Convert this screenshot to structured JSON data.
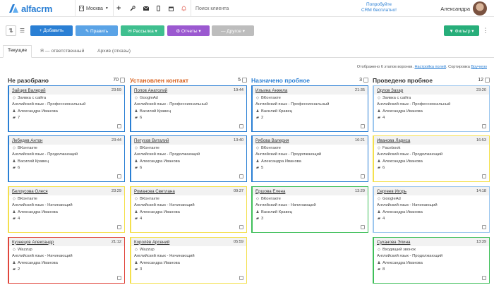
{
  "app": {
    "logo_text": "alfacrm"
  },
  "topbar": {
    "city": "Москва",
    "search_placeholder": "Поиск клиента",
    "promo_line1": "Попробуйте",
    "promo_line2": "CRM бесплатно!",
    "user_name": "Александра"
  },
  "toolbar": {
    "add": "+ Добавить",
    "edit": "✎ Править",
    "mail": "✉ Рассылка ▾",
    "reports": "⚙ Отчеты ▾",
    "other": "— Другое ▾",
    "filter": "▼ Фильтр ▾"
  },
  "tabs": [
    "Текущие",
    "Я — ответственный",
    "Архив (отказы)"
  ],
  "info": {
    "shown": "Отображено 6 этапов воронки.",
    "settings_link": "Настройка полей",
    "sort_label": "Сортировка",
    "sort_link": "Вручную"
  },
  "colors": {
    "accent": "#2a7fd4",
    "add_btn": "#2a7fd4",
    "edit_btn": "#5aa3e6",
    "mail_btn": "#3fbf8f",
    "reports_btn": "#9b59d0",
    "other_btn": "#bdbdbd",
    "filter_btn": "#27ae7a"
  },
  "columns": [
    {
      "title": "Не разобрано",
      "count": "70",
      "title_color": "#333",
      "cards": [
        {
          "name": "Зайцев Валерий",
          "time": "23:59",
          "source": "Заявка с сайта",
          "course": "Английский язык - Профессиональный",
          "manager": "Александра Иванова",
          "notes": "7",
          "border": "#2a7fd4"
        },
        {
          "name": "Лебедев Антон",
          "time": "23:44",
          "source": "ВКонтакте",
          "course": "Английский язык - Продолжающий",
          "manager": "Василий Кравец",
          "notes": "6",
          "border": "#2a7fd4"
        },
        {
          "name": "Белоусова Олеся",
          "time": "23:29",
          "source": "ВКонтакте",
          "course": "Английский язык - Начинающий",
          "manager": "Александра Иванова",
          "notes": "4",
          "border": "#f4e04d"
        },
        {
          "name": "Кузнецов Александр",
          "time": "21:12",
          "source": "Wazzup",
          "course": "Английский язык - Начинающий",
          "manager": "Александра Иванова",
          "notes": "2",
          "border": "#e0463c"
        }
      ]
    },
    {
      "title": "Установлен контакт",
      "count": "5",
      "title_color": "#d9621f",
      "cards": [
        {
          "name": "Попов Анатолий",
          "time": "19:44",
          "source": "GoogleAd",
          "course": "Английский язык - Профессиональный",
          "manager": "Василий Кравец",
          "notes": "6",
          "border": "#2a7fd4"
        },
        {
          "name": "Петухов Виталий",
          "time": "13:40",
          "source": "ВКонтакте",
          "course": "Английский язык - Продолжающий",
          "manager": "Александра Иванова",
          "notes": "6",
          "border": "#2a7fd4"
        },
        {
          "name": "Романова Светлана",
          "time": "09:37",
          "source": "ВКонтакте",
          "course": "Английский язык - Начинающий",
          "manager": "Александра Иванова",
          "notes": "4",
          "border": "#f4e04d"
        },
        {
          "name": "Королёв Арсений",
          "time": "05:59",
          "source": "Wazzup",
          "course": "Английский язык - Начинающий",
          "manager": "Александра Иванова",
          "notes": "3",
          "border": "#f4e04d"
        }
      ]
    },
    {
      "title": "Назначено пробное",
      "count": "3",
      "title_color": "#2a7fd4",
      "cards": [
        {
          "name": "Ильина Анжела",
          "time": "21:35",
          "source": "ВКонтакте",
          "course": "Английский язык - Профессиональный",
          "manager": "Василий Кравец",
          "notes": "2",
          "border": "#2a7fd4"
        },
        {
          "name": "Рябова Валерия",
          "time": "16:21",
          "source": "ВКонтакте",
          "course": "Английский язык - Продолжающий",
          "manager": "Александра Иванова",
          "notes": "5",
          "border": "#2a7fd4"
        },
        {
          "name": "Ершова Елена",
          "time": "13:29",
          "source": "ВКонтакте",
          "course": "Английский язык - Начинающий",
          "manager": "Василий Кравец",
          "notes": "3",
          "border": "#3fbf5a"
        }
      ]
    },
    {
      "title": "Проведено пробное",
      "count": "12",
      "title_color": "#333",
      "cards": [
        {
          "name": "Орлов Захар",
          "time": "23:20",
          "source": "Заявка с сайта",
          "course": "Английский язык - Профессиональный",
          "manager": "Александра Иванова",
          "notes": "4",
          "border": "#9bc6ee"
        },
        {
          "name": "Иванова Лариса",
          "time": "16:53",
          "source": "Facebook",
          "course": "Английский язык - Продолжающий",
          "manager": "Александра Иванова",
          "notes": "6",
          "border": "#f4e04d"
        },
        {
          "name": "Сергеев Игорь",
          "time": "14:18",
          "source": "GoogleAd",
          "course": "Английский язык - Начинающий",
          "manager": "Александра Иванова",
          "notes": "4",
          "border": "#9bc6ee"
        },
        {
          "name": "Суханова Элина",
          "time": "13:39",
          "source": "Входящий звонок",
          "course": "Английский язык - Продолжающий",
          "manager": "Александра Иванова",
          "notes": "8",
          "border": "#3fbf5a"
        }
      ]
    }
  ]
}
